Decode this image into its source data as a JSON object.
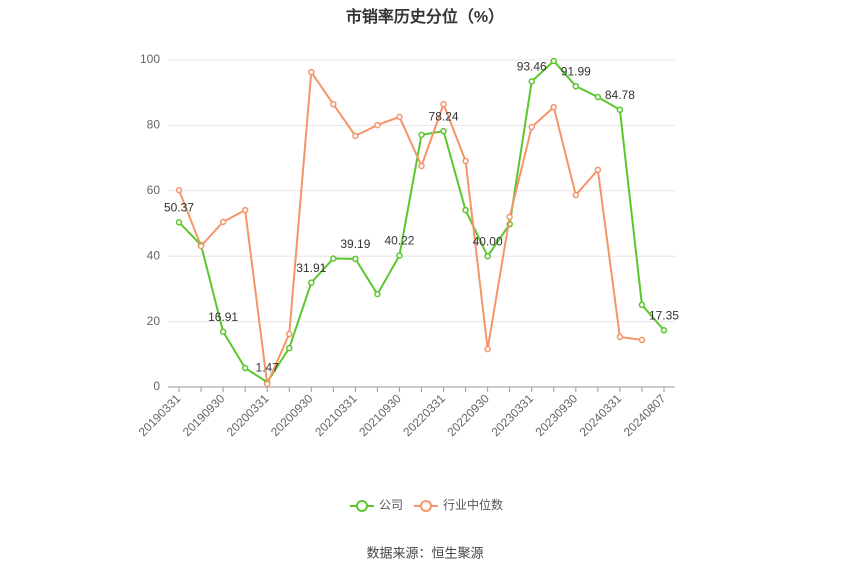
{
  "chart_data": {
    "type": "line",
    "title": "市销率历史分位（%）",
    "source": "数据来源：恒生聚源",
    "categories": [
      "20190331",
      null,
      "20190930",
      null,
      "20200331",
      null,
      "20200930",
      null,
      "20210331",
      null,
      "20210930",
      null,
      "20220331",
      null,
      "20220930",
      null,
      "20230331",
      null,
      "20230930",
      null,
      "20240331",
      null,
      "20240807"
    ],
    "series": [
      {
        "name": "公司",
        "color": "#5ac72d",
        "values": [
          50.37,
          43.4,
          16.91,
          5.8,
          1.47,
          11.9,
          31.91,
          39.3,
          39.19,
          28.4,
          40.22,
          77.1,
          78.24,
          54.1,
          40.0,
          49.8,
          93.46,
          99.7,
          91.99,
          88.7,
          84.78,
          25.1,
          17.35
        ],
        "value_labels": [
          "50.37",
          null,
          "16.91",
          null,
          "1.47",
          null,
          "31.91",
          null,
          "39.19",
          null,
          "40.22",
          null,
          "78.24",
          null,
          "40.00",
          null,
          "93.46",
          null,
          "91.99",
          null,
          "84.78",
          null,
          "17.35"
        ]
      },
      {
        "name": "行业中位数",
        "color": "#f59469",
        "values": [
          60.2,
          43.1,
          50.5,
          54.1,
          0.9,
          16.2,
          96.3,
          86.5,
          76.8,
          80.1,
          82.6,
          67.6,
          86.5,
          69.1,
          11.6,
          52.0,
          79.5,
          85.6,
          58.7,
          66.4,
          15.3,
          14.4,
          null
        ]
      }
    ],
    "ylim": [
      0,
      100
    ],
    "yticks": [
      0,
      20,
      40,
      60,
      80,
      100
    ],
    "grid": true,
    "legend": "bottom"
  }
}
